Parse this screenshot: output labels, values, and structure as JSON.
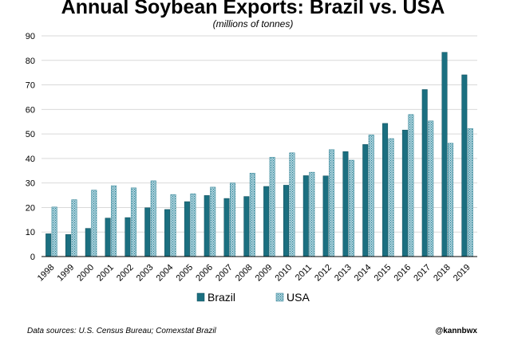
{
  "chart_data": {
    "type": "bar",
    "title": "Annual Soybean Exports: Brazil vs. USA",
    "subtitle": "(millions of tonnes)",
    "xlabel": "",
    "ylabel": "",
    "ylim": [
      0,
      90
    ],
    "yticks": [
      0,
      10,
      20,
      30,
      40,
      50,
      60,
      70,
      80,
      90
    ],
    "grid": true,
    "legend": "bottom",
    "categories": [
      "1998",
      "1999",
      "2000",
      "2001",
      "2002",
      "2003",
      "2004",
      "2005",
      "2006",
      "2007",
      "2008",
      "2009",
      "2010",
      "2011",
      "2012",
      "2013",
      "2014",
      "2015",
      "2016",
      "2017",
      "2018",
      "2019"
    ],
    "series": [
      {
        "name": "Brazil",
        "color": "#1b6f80",
        "style": "solid",
        "values": [
          9.3,
          9.0,
          11.5,
          15.7,
          15.9,
          19.9,
          19.2,
          22.4,
          24.9,
          23.7,
          24.5,
          28.6,
          29.1,
          33.0,
          32.9,
          42.8,
          45.7,
          54.3,
          51.6,
          68.1,
          83.3,
          74.1
        ]
      },
      {
        "name": "USA",
        "color": "#4f9fb0",
        "style": "hatched",
        "values": [
          20.2,
          23.2,
          27.1,
          28.9,
          28.0,
          30.9,
          25.3,
          25.6,
          28.3,
          30.0,
          34.0,
          40.5,
          42.3,
          34.4,
          43.6,
          39.3,
          49.6,
          48.1,
          57.9,
          55.3,
          46.2,
          52.2
        ]
      }
    ]
  },
  "footer": {
    "source": "Data sources: U.S. Census Bureau; Comexstat Brazil",
    "handle": "@kannbwx"
  }
}
